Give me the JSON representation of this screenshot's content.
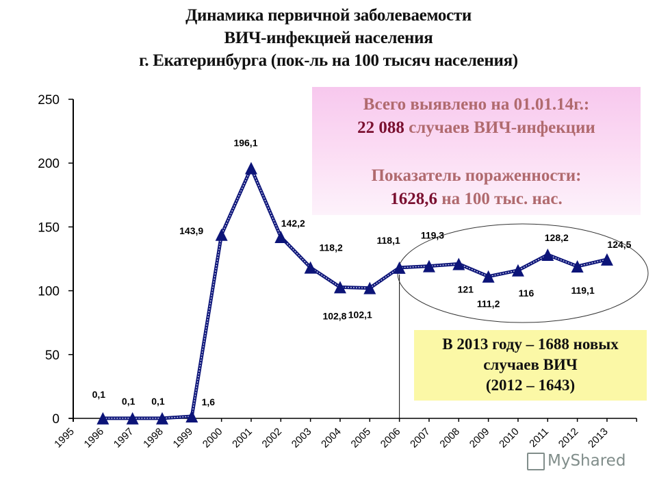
{
  "title": {
    "line1": "Динамика первичной заболеваемости",
    "line2": "ВИЧ-инфекцией населения",
    "line3": "г. Екатеринбурга (пок-ль на 100 тысяч населения)"
  },
  "info_box": {
    "line1": "Всего выявлено на 01.01.14г.:",
    "line2_value": "22 088",
    "line2_text": " случаев ВИЧ-инфекции",
    "line3": "Показатель пораженности:",
    "line4_value": "1628,6",
    "line4_text": " на 100 тыс. нас.",
    "bg_top": "#f7c8ee",
    "text_color": "#b06a6e",
    "value_color": "#7a1030"
  },
  "note_box": {
    "line1": "В 2013 году – 1688 новых",
    "line2": "случаев ВИЧ",
    "line3": "(2012 – 1643)",
    "bg": "#fbf8a6"
  },
  "watermark": "MyShared",
  "chart_data": {
    "type": "line",
    "title": "Динамика первичной заболеваемости ВИЧ-инфекцией населения г. Екатеринбурга (пок-ль на 100 тысяч населения)",
    "xlabel": "",
    "ylabel": "",
    "x_tick_labels": [
      "1995",
      "1996",
      "1997",
      "1998",
      "1999",
      "2000",
      "2001",
      "2002",
      "2003",
      "2004",
      "2005",
      "2006",
      "2007",
      "2008",
      "2009",
      "2010",
      "2011",
      "2012",
      "2013"
    ],
    "categories": [
      "1996",
      "1997",
      "1998",
      "1999",
      "2000",
      "2001",
      "2002",
      "2003",
      "2004",
      "2005",
      "2006",
      "2007",
      "2008",
      "2009",
      "2010",
      "2011",
      "2012",
      "2013"
    ],
    "series": [
      {
        "name": "Первичная заболеваемость на 100 тыс.",
        "values": [
          0.1,
          0.1,
          0.1,
          1.6,
          143.9,
          196.1,
          142.2,
          118.2,
          102.8,
          102.1,
          118.1,
          119.3,
          121,
          111.2,
          116,
          128.2,
          119.1,
          124.5
        ],
        "labels": [
          "0,1",
          "0,1",
          "0,1",
          "1,6",
          "143,9",
          "196,1",
          "142,2",
          "118,2",
          "102,8",
          "102,1",
          "118,1",
          "119,3",
          "121",
          "111,2",
          "116",
          "128,2",
          "119,1",
          "124,5"
        ],
        "color": "#0c1478",
        "marker": "triangle"
      }
    ],
    "yticks": [
      0,
      50,
      100,
      150,
      200,
      250
    ],
    "ylim": [
      0,
      250
    ],
    "grid": false,
    "legend": null,
    "annotations": [
      "Ellipse highlighting 2006–2013 values",
      "Vertical line at 2006"
    ]
  }
}
